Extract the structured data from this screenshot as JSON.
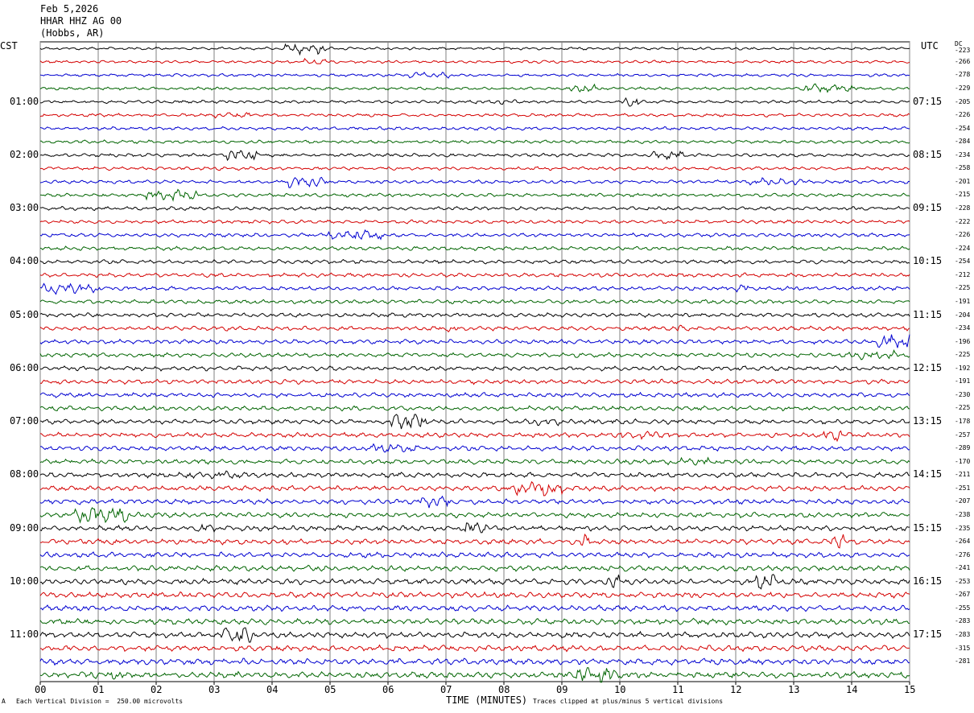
{
  "header": {
    "date": "Feb 5,2026",
    "station": "HHAR HHZ AG 00",
    "location": "(Hobbs, AR)"
  },
  "left_tz": "CST",
  "right_tz": "UTC",
  "dc_label": "DC",
  "footer": {
    "left_mark": "A",
    "scale_note": "Each Vertical Division =  250.00 microvolts",
    "clip_note": "Traces clipped at plus/minus 5 vertical divisions"
  },
  "chart_data": {
    "type": "line",
    "title": "",
    "xlabel": "TIME (MINUTES)",
    "xlim": [
      0,
      15
    ],
    "x_ticks": [
      "00",
      "01",
      "02",
      "03",
      "04",
      "05",
      "06",
      "07",
      "08",
      "09",
      "10",
      "11",
      "12",
      "13",
      "14",
      "15"
    ],
    "trace_count": 48,
    "trace_colors": [
      "#000000",
      "#d40000",
      "#0000d0",
      "#006400"
    ],
    "left_hour_labels": [
      "01:00",
      "02:00",
      "03:00",
      "04:00",
      "05:00",
      "06:00",
      "07:00",
      "08:00",
      "09:00",
      "10:00",
      "11:00"
    ],
    "right_hour_labels": [
      "07:15",
      "08:15",
      "09:15",
      "10:15",
      "11:15",
      "12:15",
      "13:15",
      "14:15",
      "15:15",
      "16:15",
      "17:15"
    ],
    "dc_offsets": [
      "-223",
      "-266",
      "-278",
      "-229",
      "-205",
      "-226",
      "-254",
      "-284",
      "-234",
      "-258",
      "-201",
      "-215",
      "-228",
      "-222",
      "-226",
      "-224",
      "-254",
      "-212",
      "-225",
      "-191",
      "-204",
      "-234",
      "-196",
      "-225",
      "-192",
      "-191",
      "-230",
      "-225",
      "-178",
      "-257",
      "-289",
      "-170",
      "-211",
      "-251",
      "-207",
      "-238",
      "-235",
      "-264",
      "-276",
      "-241",
      "-253",
      "-267",
      "-255",
      "-283",
      "-283",
      "-315",
      "-281"
    ]
  }
}
